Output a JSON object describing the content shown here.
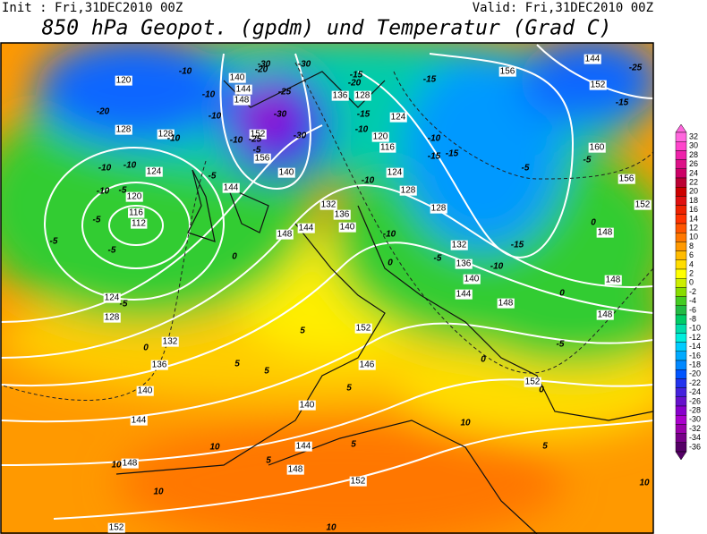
{
  "header": {
    "init": "Init : Fri,31DEC2010 00Z",
    "valid": "Valid: Fri,31DEC2010 00Z",
    "title": "850 hPa Geopot. (gpdm) und Temperatur (Grad C)"
  },
  "map": {
    "geopotential_labels": [
      "120",
      "128",
      "128",
      "124",
      "120",
      "116",
      "112",
      "124",
      "128",
      "132",
      "136",
      "140",
      "144",
      "148",
      "152",
      "140",
      "144",
      "148",
      "152",
      "156",
      "144",
      "140",
      "136",
      "128",
      "124",
      "120",
      "116",
      "124",
      "128",
      "128",
      "132",
      "136",
      "140",
      "144",
      "148",
      "156",
      "144",
      "152",
      "160",
      "156",
      "152",
      "148",
      "148",
      "148",
      "152",
      "132",
      "136",
      "140",
      "144",
      "148",
      "152",
      "146",
      "140",
      "144",
      "148",
      "152"
    ],
    "temperature_labels": [
      "-20",
      "-10",
      "-10",
      "-10",
      "-10",
      "-10",
      "-10",
      "-10",
      "-5",
      "-5",
      "-5",
      "-5",
      "-5",
      "0",
      "0",
      "-5",
      "-5",
      "-10",
      "-25",
      "-30",
      "-30",
      "-30",
      "-20",
      "-25",
      "-30",
      "-15",
      "-20",
      "-15",
      "-10",
      "-15",
      "-10",
      "-15",
      "-15",
      "-10",
      "-10",
      "0",
      "-5",
      "-15",
      "-10",
      "-5",
      "-5",
      "-25",
      "-15",
      "0",
      "0",
      "-5",
      "0",
      "0",
      "5",
      "5",
      "5",
      "5",
      "5",
      "5",
      "5",
      "10",
      "10",
      "10",
      "10",
      "10",
      "10"
    ]
  },
  "colorbar": {
    "levels": [
      32,
      30,
      28,
      26,
      24,
      22,
      20,
      18,
      16,
      14,
      12,
      10,
      8,
      6,
      4,
      2,
      0,
      -2,
      -4,
      -6,
      -8,
      -10,
      -12,
      -14,
      -16,
      -18,
      -20,
      -22,
      -24,
      -26,
      -28,
      -30,
      -32,
      -34,
      -36
    ],
    "colors": [
      "#ff66dd",
      "#ff44cc",
      "#ee22aa",
      "#dd1188",
      "#cc0066",
      "#bb0033",
      "#cc0000",
      "#e01010",
      "#ee2200",
      "#ff3300",
      "#ff5500",
      "#ff7700",
      "#ff9900",
      "#ffbb00",
      "#ffdd00",
      "#ffff00",
      "#ccee00",
      "#88dd00",
      "#44cc22",
      "#22bb44",
      "#00cc66",
      "#00ddaa",
      "#00eedd",
      "#00ccff",
      "#00aaff",
      "#0088ff",
      "#0055ff",
      "#2233ee",
      "#4422dd",
      "#6611cc",
      "#8800cc",
      "#aa00cc",
      "#9900aa",
      "#770088",
      "#550066"
    ]
  }
}
